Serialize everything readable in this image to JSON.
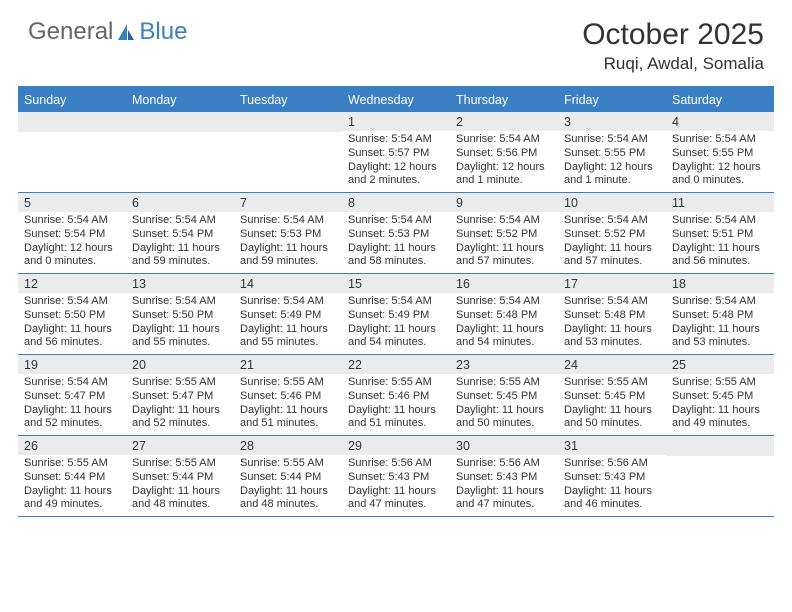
{
  "brand": {
    "part1": "General",
    "part2": "Blue"
  },
  "title": "October 2025",
  "location": "Ruqi, Awdal, Somalia",
  "colors": {
    "accent": "#3a7fc4",
    "num_bg": "#e9ebed",
    "text": "#333333",
    "bg": "#ffffff"
  },
  "day_labels": [
    "Sunday",
    "Monday",
    "Tuesday",
    "Wednesday",
    "Thursday",
    "Friday",
    "Saturday"
  ],
  "weeks": [
    [
      null,
      null,
      null,
      {
        "n": "1",
        "sr": "5:54 AM",
        "ss": "5:57 PM",
        "dl": "12 hours and 2 minutes."
      },
      {
        "n": "2",
        "sr": "5:54 AM",
        "ss": "5:56 PM",
        "dl": "12 hours and 1 minute."
      },
      {
        "n": "3",
        "sr": "5:54 AM",
        "ss": "5:55 PM",
        "dl": "12 hours and 1 minute."
      },
      {
        "n": "4",
        "sr": "5:54 AM",
        "ss": "5:55 PM",
        "dl": "12 hours and 0 minutes."
      }
    ],
    [
      {
        "n": "5",
        "sr": "5:54 AM",
        "ss": "5:54 PM",
        "dl": "12 hours and 0 minutes."
      },
      {
        "n": "6",
        "sr": "5:54 AM",
        "ss": "5:54 PM",
        "dl": "11 hours and 59 minutes."
      },
      {
        "n": "7",
        "sr": "5:54 AM",
        "ss": "5:53 PM",
        "dl": "11 hours and 59 minutes."
      },
      {
        "n": "8",
        "sr": "5:54 AM",
        "ss": "5:53 PM",
        "dl": "11 hours and 58 minutes."
      },
      {
        "n": "9",
        "sr": "5:54 AM",
        "ss": "5:52 PM",
        "dl": "11 hours and 57 minutes."
      },
      {
        "n": "10",
        "sr": "5:54 AM",
        "ss": "5:52 PM",
        "dl": "11 hours and 57 minutes."
      },
      {
        "n": "11",
        "sr": "5:54 AM",
        "ss": "5:51 PM",
        "dl": "11 hours and 56 minutes."
      }
    ],
    [
      {
        "n": "12",
        "sr": "5:54 AM",
        "ss": "5:50 PM",
        "dl": "11 hours and 56 minutes."
      },
      {
        "n": "13",
        "sr": "5:54 AM",
        "ss": "5:50 PM",
        "dl": "11 hours and 55 minutes."
      },
      {
        "n": "14",
        "sr": "5:54 AM",
        "ss": "5:49 PM",
        "dl": "11 hours and 55 minutes."
      },
      {
        "n": "15",
        "sr": "5:54 AM",
        "ss": "5:49 PM",
        "dl": "11 hours and 54 minutes."
      },
      {
        "n": "16",
        "sr": "5:54 AM",
        "ss": "5:48 PM",
        "dl": "11 hours and 54 minutes."
      },
      {
        "n": "17",
        "sr": "5:54 AM",
        "ss": "5:48 PM",
        "dl": "11 hours and 53 minutes."
      },
      {
        "n": "18",
        "sr": "5:54 AM",
        "ss": "5:48 PM",
        "dl": "11 hours and 53 minutes."
      }
    ],
    [
      {
        "n": "19",
        "sr": "5:54 AM",
        "ss": "5:47 PM",
        "dl": "11 hours and 52 minutes."
      },
      {
        "n": "20",
        "sr": "5:55 AM",
        "ss": "5:47 PM",
        "dl": "11 hours and 52 minutes."
      },
      {
        "n": "21",
        "sr": "5:55 AM",
        "ss": "5:46 PM",
        "dl": "11 hours and 51 minutes."
      },
      {
        "n": "22",
        "sr": "5:55 AM",
        "ss": "5:46 PM",
        "dl": "11 hours and 51 minutes."
      },
      {
        "n": "23",
        "sr": "5:55 AM",
        "ss": "5:45 PM",
        "dl": "11 hours and 50 minutes."
      },
      {
        "n": "24",
        "sr": "5:55 AM",
        "ss": "5:45 PM",
        "dl": "11 hours and 50 minutes."
      },
      {
        "n": "25",
        "sr": "5:55 AM",
        "ss": "5:45 PM",
        "dl": "11 hours and 49 minutes."
      }
    ],
    [
      {
        "n": "26",
        "sr": "5:55 AM",
        "ss": "5:44 PM",
        "dl": "11 hours and 49 minutes."
      },
      {
        "n": "27",
        "sr": "5:55 AM",
        "ss": "5:44 PM",
        "dl": "11 hours and 48 minutes."
      },
      {
        "n": "28",
        "sr": "5:55 AM",
        "ss": "5:44 PM",
        "dl": "11 hours and 48 minutes."
      },
      {
        "n": "29",
        "sr": "5:56 AM",
        "ss": "5:43 PM",
        "dl": "11 hours and 47 minutes."
      },
      {
        "n": "30",
        "sr": "5:56 AM",
        "ss": "5:43 PM",
        "dl": "11 hours and 47 minutes."
      },
      {
        "n": "31",
        "sr": "5:56 AM",
        "ss": "5:43 PM",
        "dl": "11 hours and 46 minutes."
      },
      null
    ]
  ],
  "labels": {
    "sunrise": "Sunrise:",
    "sunset": "Sunset:",
    "daylight": "Daylight:"
  }
}
